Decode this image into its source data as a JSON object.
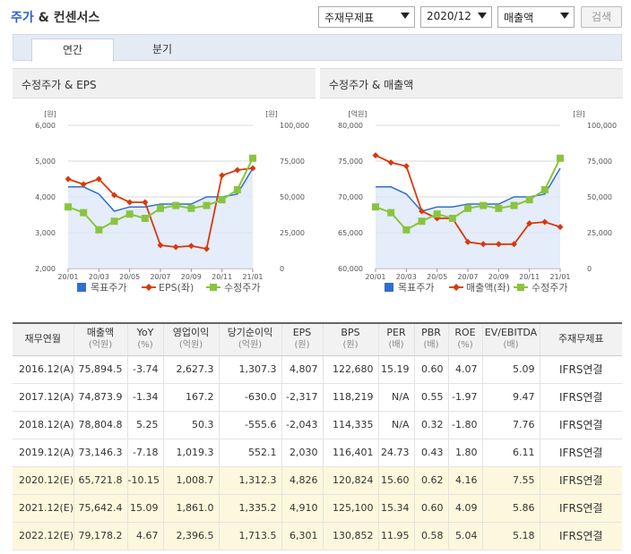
{
  "header": {
    "title_main": "주가",
    "title_rest": "& 컨센서스",
    "select_fs": "주재무제표",
    "select_period": "2020/12",
    "select_metric": "매출액",
    "search_label": "검색"
  },
  "tabs": [
    {
      "label": "연간"
    },
    {
      "label": "분기"
    }
  ],
  "panels": {
    "left_title": "수정주가 & EPS",
    "right_title": "수정주가 & 매출액"
  },
  "colors": {
    "target_price": "#2f6fcf",
    "red_series": "#d9380c",
    "adjusted_price": "#8ac43f",
    "estimate_row_bg": "#fdf8dd"
  },
  "chart_data": [
    {
      "type": "line",
      "left_unit": "[원]",
      "right_unit": "[원]",
      "left_ticks": [
        "6,000",
        "5,000",
        "4,000",
        "3,000",
        "2,000"
      ],
      "right_ticks": [
        "100,000",
        "75,000",
        "50,000",
        "25,000",
        "0"
      ],
      "x_ticks": [
        "20/01",
        "20/03",
        "20/05",
        "20/07",
        "20/09",
        "20/11",
        "21/01"
      ],
      "left_ylim": [
        2000,
        6000
      ],
      "right_ylim": [
        0,
        100000
      ],
      "series": [
        {
          "name": "목표주가",
          "axis": "right",
          "values": [
            57000,
            57000,
            52000,
            40000,
            43000,
            43000,
            45000,
            45000,
            45000,
            50000,
            50000,
            52000,
            70000
          ]
        },
        {
          "name": "EPS(좌)",
          "axis": "left",
          "values": [
            4500,
            4350,
            4500,
            4050,
            3850,
            3850,
            2650,
            2600,
            2630,
            2550,
            4600,
            4750,
            4800
          ]
        },
        {
          "name": "수정주가",
          "axis": "right",
          "values": [
            43000,
            39000,
            27000,
            33000,
            38000,
            35000,
            42000,
            44000,
            42000,
            44000,
            48000,
            55000,
            77000
          ]
        }
      ],
      "legend": [
        "목표주가",
        "EPS(좌)",
        "수정주가"
      ]
    },
    {
      "type": "line",
      "left_unit": "[억원]",
      "right_unit": "[원]",
      "left_ticks": [
        "80,000",
        "75,000",
        "70,000",
        "65,000",
        "60,000"
      ],
      "right_ticks": [
        "100,000",
        "75,000",
        "50,000",
        "25,000",
        "0"
      ],
      "x_ticks": [
        "20/01",
        "20/03",
        "20/05",
        "20/07",
        "20/09",
        "20/11",
        "21/01"
      ],
      "left_ylim": [
        60000,
        80000
      ],
      "right_ylim": [
        0,
        100000
      ],
      "series": [
        {
          "name": "목표주가",
          "axis": "right",
          "values": [
            57000,
            57000,
            52000,
            40000,
            43000,
            43000,
            45000,
            45000,
            45000,
            50000,
            50000,
            52000,
            70000
          ]
        },
        {
          "name": "매출액(좌)",
          "axis": "left",
          "values": [
            75800,
            74800,
            74300,
            68000,
            67000,
            67000,
            63700,
            63400,
            63400,
            63400,
            66300,
            66500,
            65800
          ]
        },
        {
          "name": "수정주가",
          "axis": "right",
          "values": [
            43000,
            39000,
            27000,
            33000,
            38000,
            35000,
            42000,
            44000,
            42000,
            44000,
            48000,
            55000,
            77000
          ]
        }
      ],
      "legend": [
        "목표주가",
        "매출액(좌)",
        "수정주가"
      ]
    }
  ],
  "table": {
    "headers": [
      {
        "label": "재무연월",
        "sub": ""
      },
      {
        "label": "매출액",
        "sub": "(억원)"
      },
      {
        "label": "YoY",
        "sub": "(%)"
      },
      {
        "label": "영업이익",
        "sub": "(억원)"
      },
      {
        "label": "당기순이익",
        "sub": "(억원)"
      },
      {
        "label": "EPS",
        "sub": "(원)"
      },
      {
        "label": "BPS",
        "sub": "(원)"
      },
      {
        "label": "PER",
        "sub": "(배)"
      },
      {
        "label": "PBR",
        "sub": "(배)"
      },
      {
        "label": "ROE",
        "sub": "(%)"
      },
      {
        "label": "EV/EBITDA",
        "sub": "(배)"
      },
      {
        "label": "주재무제표",
        "sub": ""
      }
    ],
    "rows": [
      {
        "est": false,
        "cells": [
          "2016.12(A)",
          "75,894.5",
          "-3.74",
          "2,627.3",
          "1,307.3",
          "4,807",
          "122,680",
          "15.19",
          "0.60",
          "4.07",
          "5.09",
          "IFRS연결"
        ]
      },
      {
        "est": false,
        "cells": [
          "2017.12(A)",
          "74,873.9",
          "-1.34",
          "167.2",
          "-630.0",
          "-2,317",
          "118,219",
          "N/A",
          "0.55",
          "-1.97",
          "9.47",
          "IFRS연결"
        ]
      },
      {
        "est": false,
        "cells": [
          "2018.12(A)",
          "78,804.8",
          "5.25",
          "50.3",
          "-555.6",
          "-2,043",
          "114,335",
          "N/A",
          "0.32",
          "-1.80",
          "7.76",
          "IFRS연결"
        ]
      },
      {
        "est": false,
        "cells": [
          "2019.12(A)",
          "73,146.3",
          "-7.18",
          "1,019.3",
          "552.1",
          "2,030",
          "116,401",
          "24.73",
          "0.43",
          "1.80",
          "6.11",
          "IFRS연결"
        ]
      },
      {
        "est": true,
        "cells": [
          "2020.12(E)",
          "65,721.8",
          "-10.15",
          "1,008.7",
          "1,312.3",
          "4,826",
          "120,824",
          "15.60",
          "0.62",
          "4.16",
          "7.55",
          "IFRS연결"
        ]
      },
      {
        "est": true,
        "cells": [
          "2021.12(E)",
          "75,642.4",
          "15.09",
          "1,861.0",
          "1,335.2",
          "4,910",
          "125,100",
          "15.34",
          "0.60",
          "4.09",
          "5.86",
          "IFRS연결"
        ]
      },
      {
        "est": true,
        "cells": [
          "2022.12(E)",
          "79,178.2",
          "4.67",
          "2,396.5",
          "1,713.5",
          "6,301",
          "130,852",
          "11.95",
          "0.58",
          "5.04",
          "5.18",
          "IFRS연결"
        ]
      }
    ]
  }
}
